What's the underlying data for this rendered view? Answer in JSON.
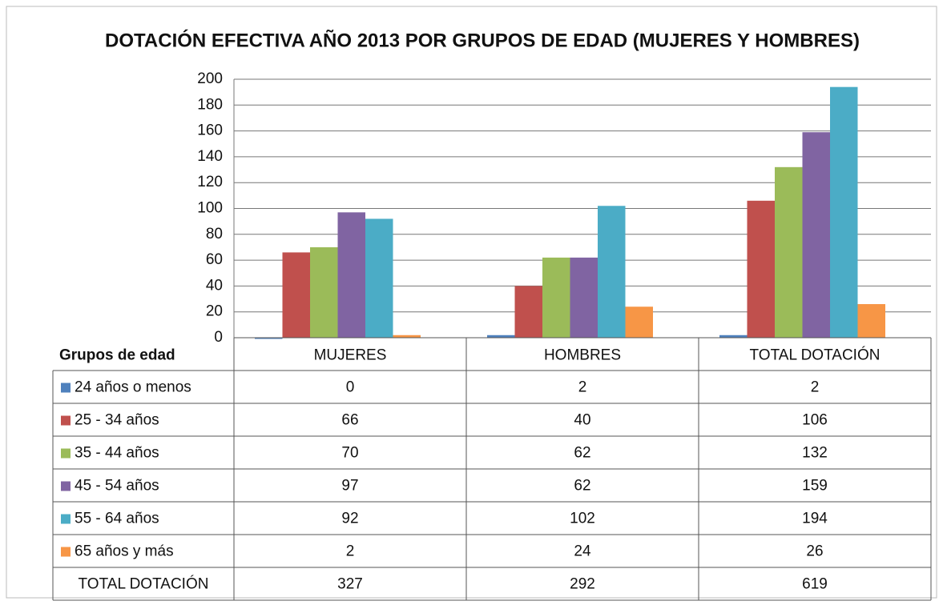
{
  "chart_data": {
    "type": "bar",
    "title": "DOTACIÓN EFECTIVA AÑO 2013 POR GRUPOS DE EDAD (MUJERES Y HOMBRES)",
    "table_header": "Grupos de edad",
    "categories": [
      "MUJERES",
      "HOMBRES",
      "TOTAL DOTACIÓN"
    ],
    "series": [
      {
        "name": "24 años o menos",
        "color": "#4f81bd",
        "values": [
          0,
          2,
          2
        ]
      },
      {
        "name": "25 - 34 años",
        "color": "#c0504d",
        "values": [
          66,
          40,
          106
        ]
      },
      {
        "name": "35 - 44 años",
        "color": "#9bbb59",
        "values": [
          70,
          62,
          132
        ]
      },
      {
        "name": "45 - 54 años",
        "color": "#8064a2",
        "values": [
          97,
          62,
          159
        ]
      },
      {
        "name": "55 - 64 años",
        "color": "#4bacc6",
        "values": [
          92,
          102,
          194
        ]
      },
      {
        "name": "65 años y más",
        "color": "#f79646",
        "values": [
          2,
          24,
          26
        ]
      }
    ],
    "total_row": {
      "label": "TOTAL DOTACIÓN",
      "values": [
        327,
        292,
        619
      ]
    },
    "ylim": [
      0,
      200
    ],
    "yticks": [
      0,
      20,
      40,
      60,
      80,
      100,
      120,
      140,
      160,
      180,
      200
    ],
    "grid": true
  }
}
